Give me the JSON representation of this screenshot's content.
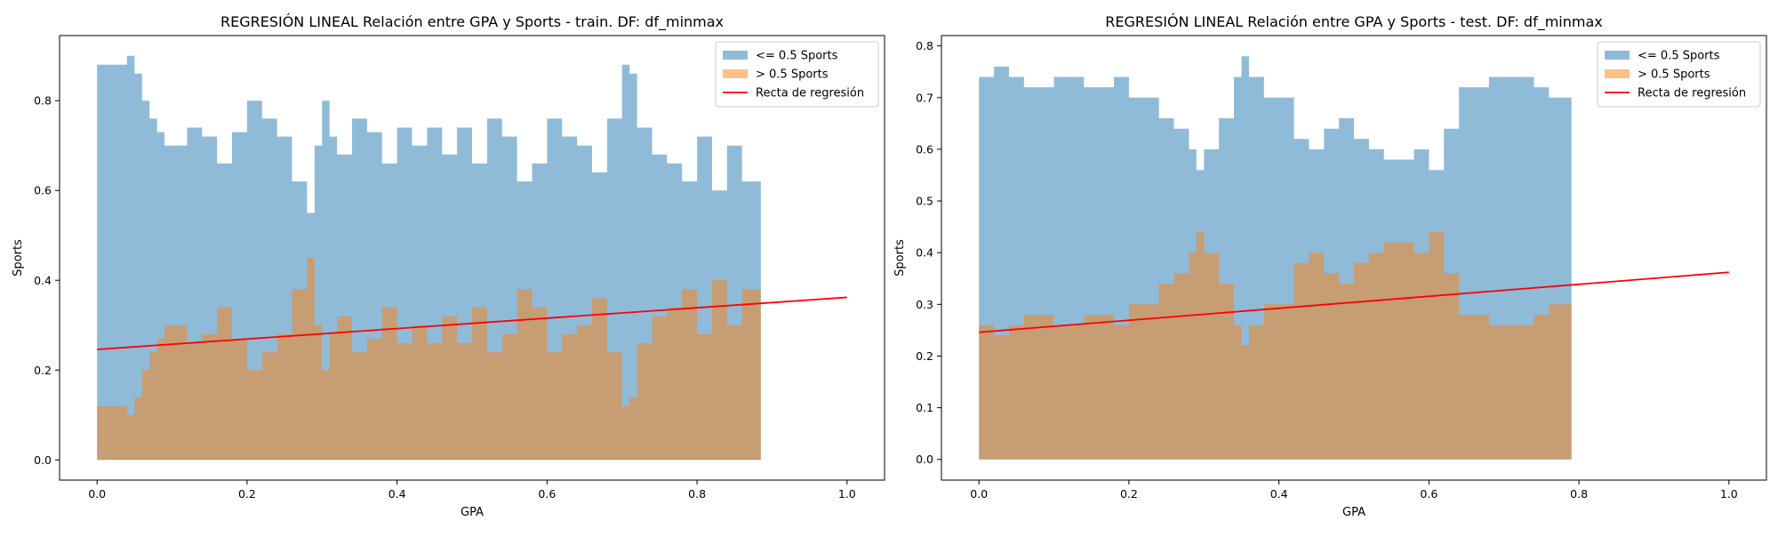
{
  "figure": {
    "background": "#ffffff"
  },
  "colors": {
    "below": "#1f77b4",
    "above": "#ff7f0e",
    "line": "#ff0000",
    "below_alpha": 0.5,
    "above_alpha": 0.5
  },
  "chart_data": [
    {
      "type": "area",
      "title": "REGRESIÓN LINEAL Relación entre GPA y Sports - train. DF: df_minmax",
      "xlabel": "GPA",
      "ylabel": "Sports",
      "xlim": [
        -0.05,
        1.05
      ],
      "ylim": [
        -0.045,
        0.945
      ],
      "xticks": [
        "0.0",
        "0.2",
        "0.4",
        "0.6",
        "0.8",
        "1.0"
      ],
      "yticks": [
        "0.0",
        "0.2",
        "0.4",
        "0.6",
        "0.8"
      ],
      "legend": {
        "position": "top-right",
        "entries": [
          "<= 0.5 Sports",
          "> 0.5 Sports",
          "Recta de regresión"
        ]
      },
      "series": [
        {
          "name": "<= 0.5 Sports",
          "x": [
            0.0,
            0.02,
            0.04,
            0.05,
            0.06,
            0.07,
            0.08,
            0.09,
            0.1,
            0.12,
            0.14,
            0.16,
            0.18,
            0.2,
            0.22,
            0.24,
            0.26,
            0.28,
            0.29,
            0.3,
            0.31,
            0.32,
            0.34,
            0.36,
            0.38,
            0.4,
            0.42,
            0.44,
            0.46,
            0.48,
            0.5,
            0.52,
            0.54,
            0.56,
            0.58,
            0.6,
            0.62,
            0.64,
            0.66,
            0.68,
            0.7,
            0.71,
            0.72,
            0.74,
            0.76,
            0.78,
            0.8,
            0.82,
            0.84,
            0.86,
            0.885
          ],
          "values": [
            0.88,
            0.88,
            0.9,
            0.86,
            0.8,
            0.76,
            0.73,
            0.7,
            0.7,
            0.74,
            0.72,
            0.66,
            0.73,
            0.8,
            0.76,
            0.72,
            0.62,
            0.55,
            0.7,
            0.8,
            0.72,
            0.68,
            0.76,
            0.73,
            0.66,
            0.74,
            0.7,
            0.74,
            0.68,
            0.74,
            0.66,
            0.76,
            0.72,
            0.62,
            0.66,
            0.76,
            0.72,
            0.7,
            0.64,
            0.76,
            0.88,
            0.86,
            0.74,
            0.68,
            0.66,
            0.62,
            0.72,
            0.6,
            0.7,
            0.62,
            0.64
          ]
        },
        {
          "name": "> 0.5 Sports",
          "x": [
            0.0,
            0.02,
            0.04,
            0.05,
            0.06,
            0.07,
            0.08,
            0.09,
            0.1,
            0.12,
            0.14,
            0.16,
            0.18,
            0.2,
            0.22,
            0.24,
            0.26,
            0.28,
            0.29,
            0.3,
            0.31,
            0.32,
            0.34,
            0.36,
            0.38,
            0.4,
            0.42,
            0.44,
            0.46,
            0.48,
            0.5,
            0.52,
            0.54,
            0.56,
            0.58,
            0.6,
            0.62,
            0.64,
            0.66,
            0.68,
            0.7,
            0.71,
            0.72,
            0.74,
            0.76,
            0.78,
            0.8,
            0.82,
            0.84,
            0.86,
            0.885
          ],
          "values": [
            0.12,
            0.12,
            0.1,
            0.14,
            0.2,
            0.24,
            0.27,
            0.3,
            0.3,
            0.26,
            0.28,
            0.34,
            0.27,
            0.2,
            0.24,
            0.28,
            0.38,
            0.45,
            0.3,
            0.2,
            0.28,
            0.32,
            0.24,
            0.27,
            0.34,
            0.26,
            0.3,
            0.26,
            0.32,
            0.26,
            0.34,
            0.24,
            0.28,
            0.38,
            0.34,
            0.24,
            0.28,
            0.3,
            0.36,
            0.24,
            0.12,
            0.14,
            0.26,
            0.32,
            0.34,
            0.38,
            0.28,
            0.4,
            0.3,
            0.38,
            0.36
          ]
        },
        {
          "name": "Recta de regresión",
          "type": "line",
          "x": [
            0.0,
            1.0
          ],
          "values": [
            0.246,
            0.362
          ]
        }
      ]
    },
    {
      "type": "area",
      "title": "REGRESIÓN LINEAL Relación entre GPA y Sports - test. DF: df_minmax",
      "xlabel": "GPA",
      "ylabel": "Sports",
      "xlim": [
        -0.05,
        1.05
      ],
      "ylim": [
        -0.04,
        0.82
      ],
      "xticks": [
        "0.0",
        "0.2",
        "0.4",
        "0.6",
        "0.8",
        "1.0"
      ],
      "yticks": [
        "0.0",
        "0.1",
        "0.2",
        "0.3",
        "0.4",
        "0.5",
        "0.6",
        "0.7",
        "0.8"
      ],
      "legend": {
        "position": "top-right",
        "entries": [
          "<= 0.5 Sports",
          "> 0.5 Sports",
          "Recta de regresión"
        ]
      },
      "series": [
        {
          "name": "<= 0.5 Sports",
          "x": [
            0.0,
            0.01,
            0.02,
            0.03,
            0.04,
            0.06,
            0.08,
            0.1,
            0.12,
            0.14,
            0.16,
            0.18,
            0.2,
            0.22,
            0.24,
            0.26,
            0.28,
            0.29,
            0.3,
            0.32,
            0.34,
            0.35,
            0.36,
            0.38,
            0.4,
            0.42,
            0.44,
            0.46,
            0.48,
            0.5,
            0.52,
            0.54,
            0.56,
            0.58,
            0.6,
            0.62,
            0.64,
            0.66,
            0.68,
            0.7,
            0.72,
            0.74,
            0.76,
            0.79
          ],
          "values": [
            0.74,
            0.74,
            0.76,
            0.76,
            0.74,
            0.72,
            0.72,
            0.74,
            0.74,
            0.72,
            0.72,
            0.74,
            0.7,
            0.7,
            0.66,
            0.64,
            0.6,
            0.56,
            0.6,
            0.66,
            0.74,
            0.78,
            0.74,
            0.7,
            0.7,
            0.62,
            0.6,
            0.64,
            0.66,
            0.62,
            0.6,
            0.58,
            0.58,
            0.6,
            0.56,
            0.64,
            0.72,
            0.72,
            0.74,
            0.74,
            0.74,
            0.72,
            0.7,
            0.68
          ]
        },
        {
          "name": "> 0.5 Sports",
          "x": [
            0.0,
            0.01,
            0.02,
            0.03,
            0.04,
            0.06,
            0.08,
            0.1,
            0.12,
            0.14,
            0.16,
            0.18,
            0.2,
            0.22,
            0.24,
            0.26,
            0.28,
            0.29,
            0.3,
            0.32,
            0.34,
            0.35,
            0.36,
            0.38,
            0.4,
            0.42,
            0.44,
            0.46,
            0.48,
            0.5,
            0.52,
            0.54,
            0.56,
            0.58,
            0.6,
            0.62,
            0.64,
            0.66,
            0.68,
            0.7,
            0.72,
            0.74,
            0.76,
            0.79
          ],
          "values": [
            0.26,
            0.26,
            0.24,
            0.24,
            0.26,
            0.28,
            0.28,
            0.26,
            0.26,
            0.28,
            0.28,
            0.26,
            0.3,
            0.3,
            0.34,
            0.36,
            0.4,
            0.44,
            0.4,
            0.34,
            0.26,
            0.22,
            0.26,
            0.3,
            0.3,
            0.38,
            0.4,
            0.36,
            0.34,
            0.38,
            0.4,
            0.42,
            0.42,
            0.4,
            0.44,
            0.36,
            0.28,
            0.28,
            0.26,
            0.26,
            0.26,
            0.28,
            0.3,
            0.32
          ]
        },
        {
          "name": "Recta de regresión",
          "type": "line",
          "x": [
            0.0,
            1.0
          ],
          "values": [
            0.246,
            0.362
          ]
        }
      ]
    }
  ]
}
